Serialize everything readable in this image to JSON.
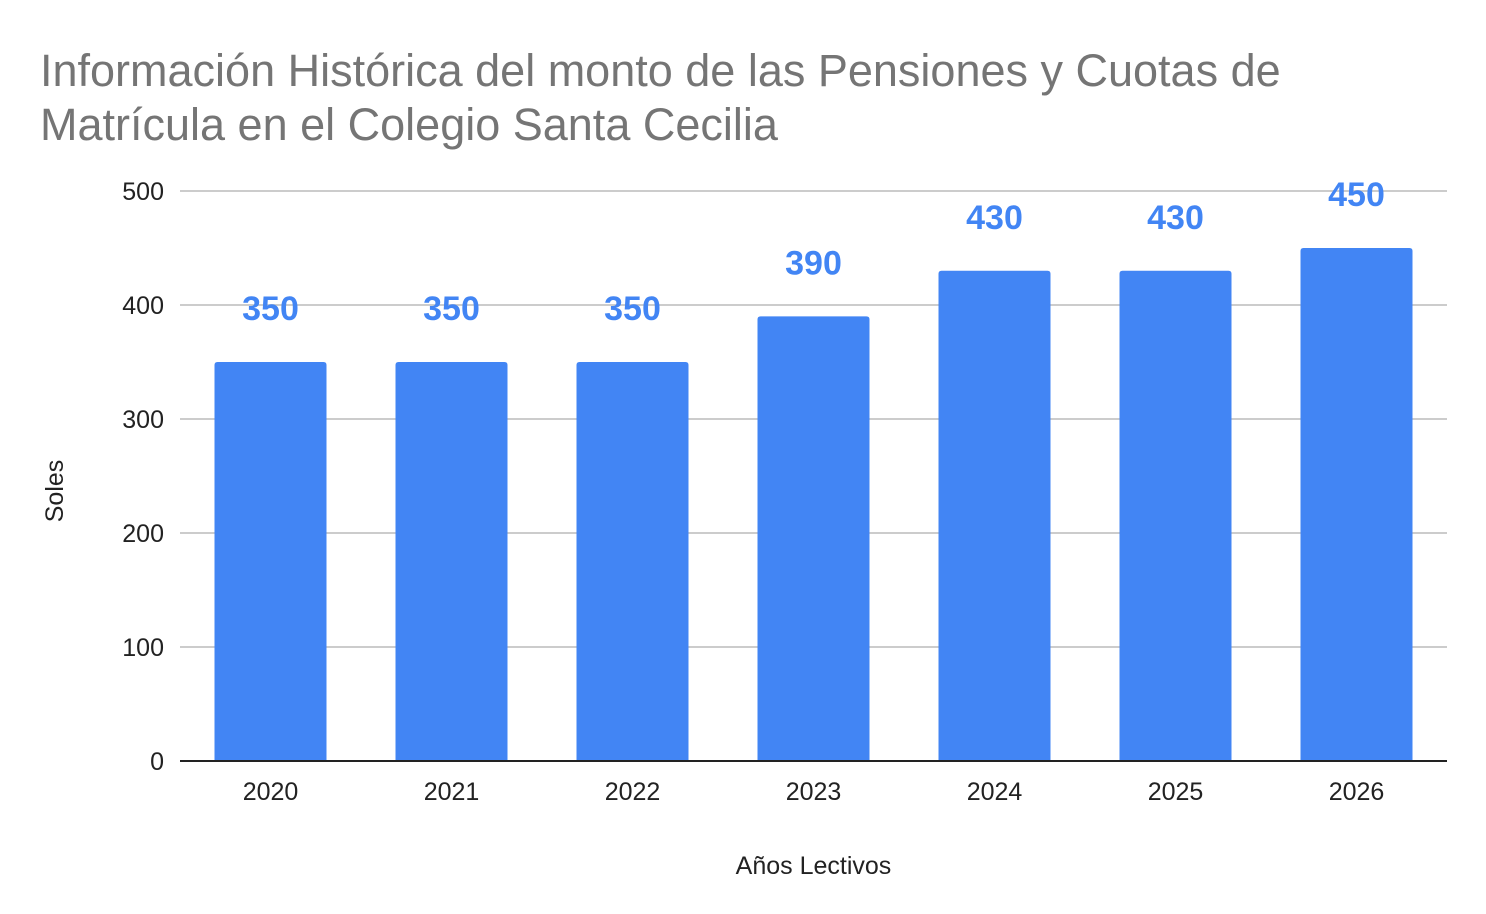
{
  "chart_data": {
    "type": "bar",
    "title": "Información Histórica del monto de las Pensiones y Cuotas de Matrícula en el Colegio Santa Cecilia",
    "xlabel": "Años Lectivos",
    "ylabel": "Soles",
    "categories": [
      "2020",
      "2021",
      "2022",
      "2023",
      "2024",
      "2025",
      "2026"
    ],
    "values": [
      350,
      350,
      350,
      390,
      430,
      430,
      450
    ],
    "data_labels": [
      "350",
      "350",
      "350",
      "390",
      "430",
      "430",
      "450"
    ],
    "ylim": [
      0,
      500
    ],
    "yticks": [
      "0",
      "100",
      "200",
      "300",
      "400",
      "500"
    ],
    "grid": true,
    "legend": "none",
    "bar_color": "#4285f4",
    "label_color": "#4285f4",
    "title_color": "#757575",
    "gridline_color": "#cccccc",
    "axis_color": "#222222"
  }
}
